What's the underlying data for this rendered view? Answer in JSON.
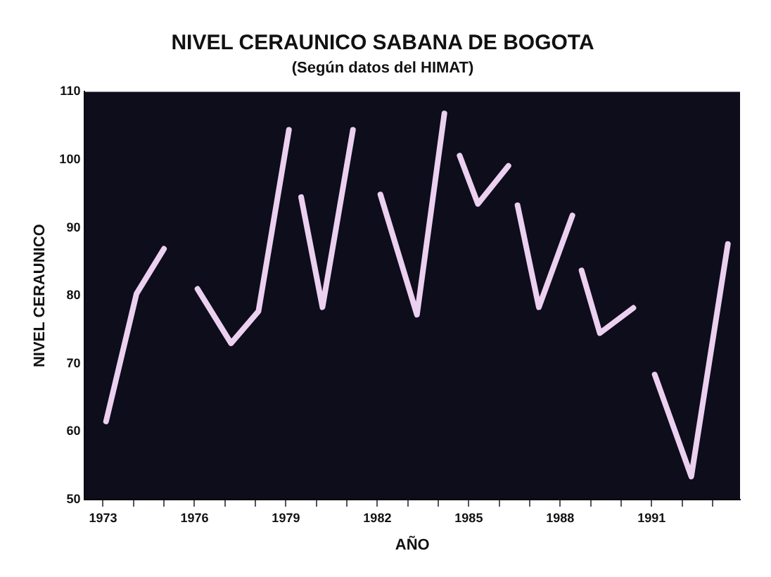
{
  "chart_data": {
    "type": "line",
    "title": "NIVEL CERAUNICO SABANA DE BOGOTA",
    "subtitle": "(Según datos del HIMAT)",
    "xlabel": "AÑO",
    "ylabel": "NIVEL CERAUNICO",
    "xlim": [
      1972.4,
      1993.9
    ],
    "ylim": [
      50,
      110
    ],
    "yticks": [
      50,
      60,
      70,
      80,
      90,
      100,
      110
    ],
    "xticks": [
      1973,
      {
        "value": 1974,
        "label": null
      },
      {
        "value": 1975,
        "label": null
      },
      1976,
      {
        "value": 1977,
        "label": null
      },
      {
        "value": 1978,
        "label": null
      },
      1979,
      {
        "value": 1980,
        "label": null
      },
      {
        "value": 1981,
        "label": null
      },
      1982,
      {
        "value": 1983,
        "label": null
      },
      {
        "value": 1984,
        "label": null
      },
      1985,
      {
        "value": 1986,
        "label": null
      },
      {
        "value": 1987,
        "label": null
      },
      1988,
      {
        "value": 1989,
        "label": null
      },
      {
        "value": 1990,
        "label": null
      },
      1991,
      {
        "value": 1992,
        "label": null
      },
      {
        "value": 1993,
        "label": null
      }
    ],
    "grid": false,
    "legend": false,
    "marker": "none",
    "line_style": "solid",
    "series": [
      {
        "color": "#ecd0f0",
        "x": [
          1973.1,
          1974.1,
          1975.0
        ],
        "values": [
          61.5,
          80.3,
          86.9
        ]
      },
      {
        "color": "#ecd0f0",
        "x": [
          1976.1,
          1977.2,
          1978.1,
          1979.1
        ],
        "values": [
          81,
          73,
          77.7,
          104.4
        ]
      },
      {
        "color": "#ecd0f0",
        "x": [
          1979.5,
          1980.2,
          1981.2
        ],
        "values": [
          94.5,
          78.3,
          104.4
        ]
      },
      {
        "color": "#ecd0f0",
        "x": [
          1982.1,
          1983.3,
          1984.2
        ],
        "values": [
          94.9,
          77.2,
          106.8
        ]
      },
      {
        "color": "#ecd0f0",
        "x": [
          1984.7,
          1985.3,
          1986.3
        ],
        "values": [
          100.6,
          93.5,
          99.1
        ]
      },
      {
        "color": "#ecd0f0",
        "x": [
          1986.6,
          1987.3,
          1988.4
        ],
        "values": [
          93.3,
          78.3,
          91.8
        ]
      },
      {
        "color": "#ecd0f0",
        "x": [
          1988.7,
          1989.3,
          1990.4
        ],
        "values": [
          83.7,
          74.5,
          78.2
        ]
      },
      {
        "color": "#ecd0f0",
        "x": [
          1991.1,
          1992.3,
          1993.5
        ],
        "values": [
          68.4,
          53.4,
          87.6
        ]
      }
    ]
  }
}
